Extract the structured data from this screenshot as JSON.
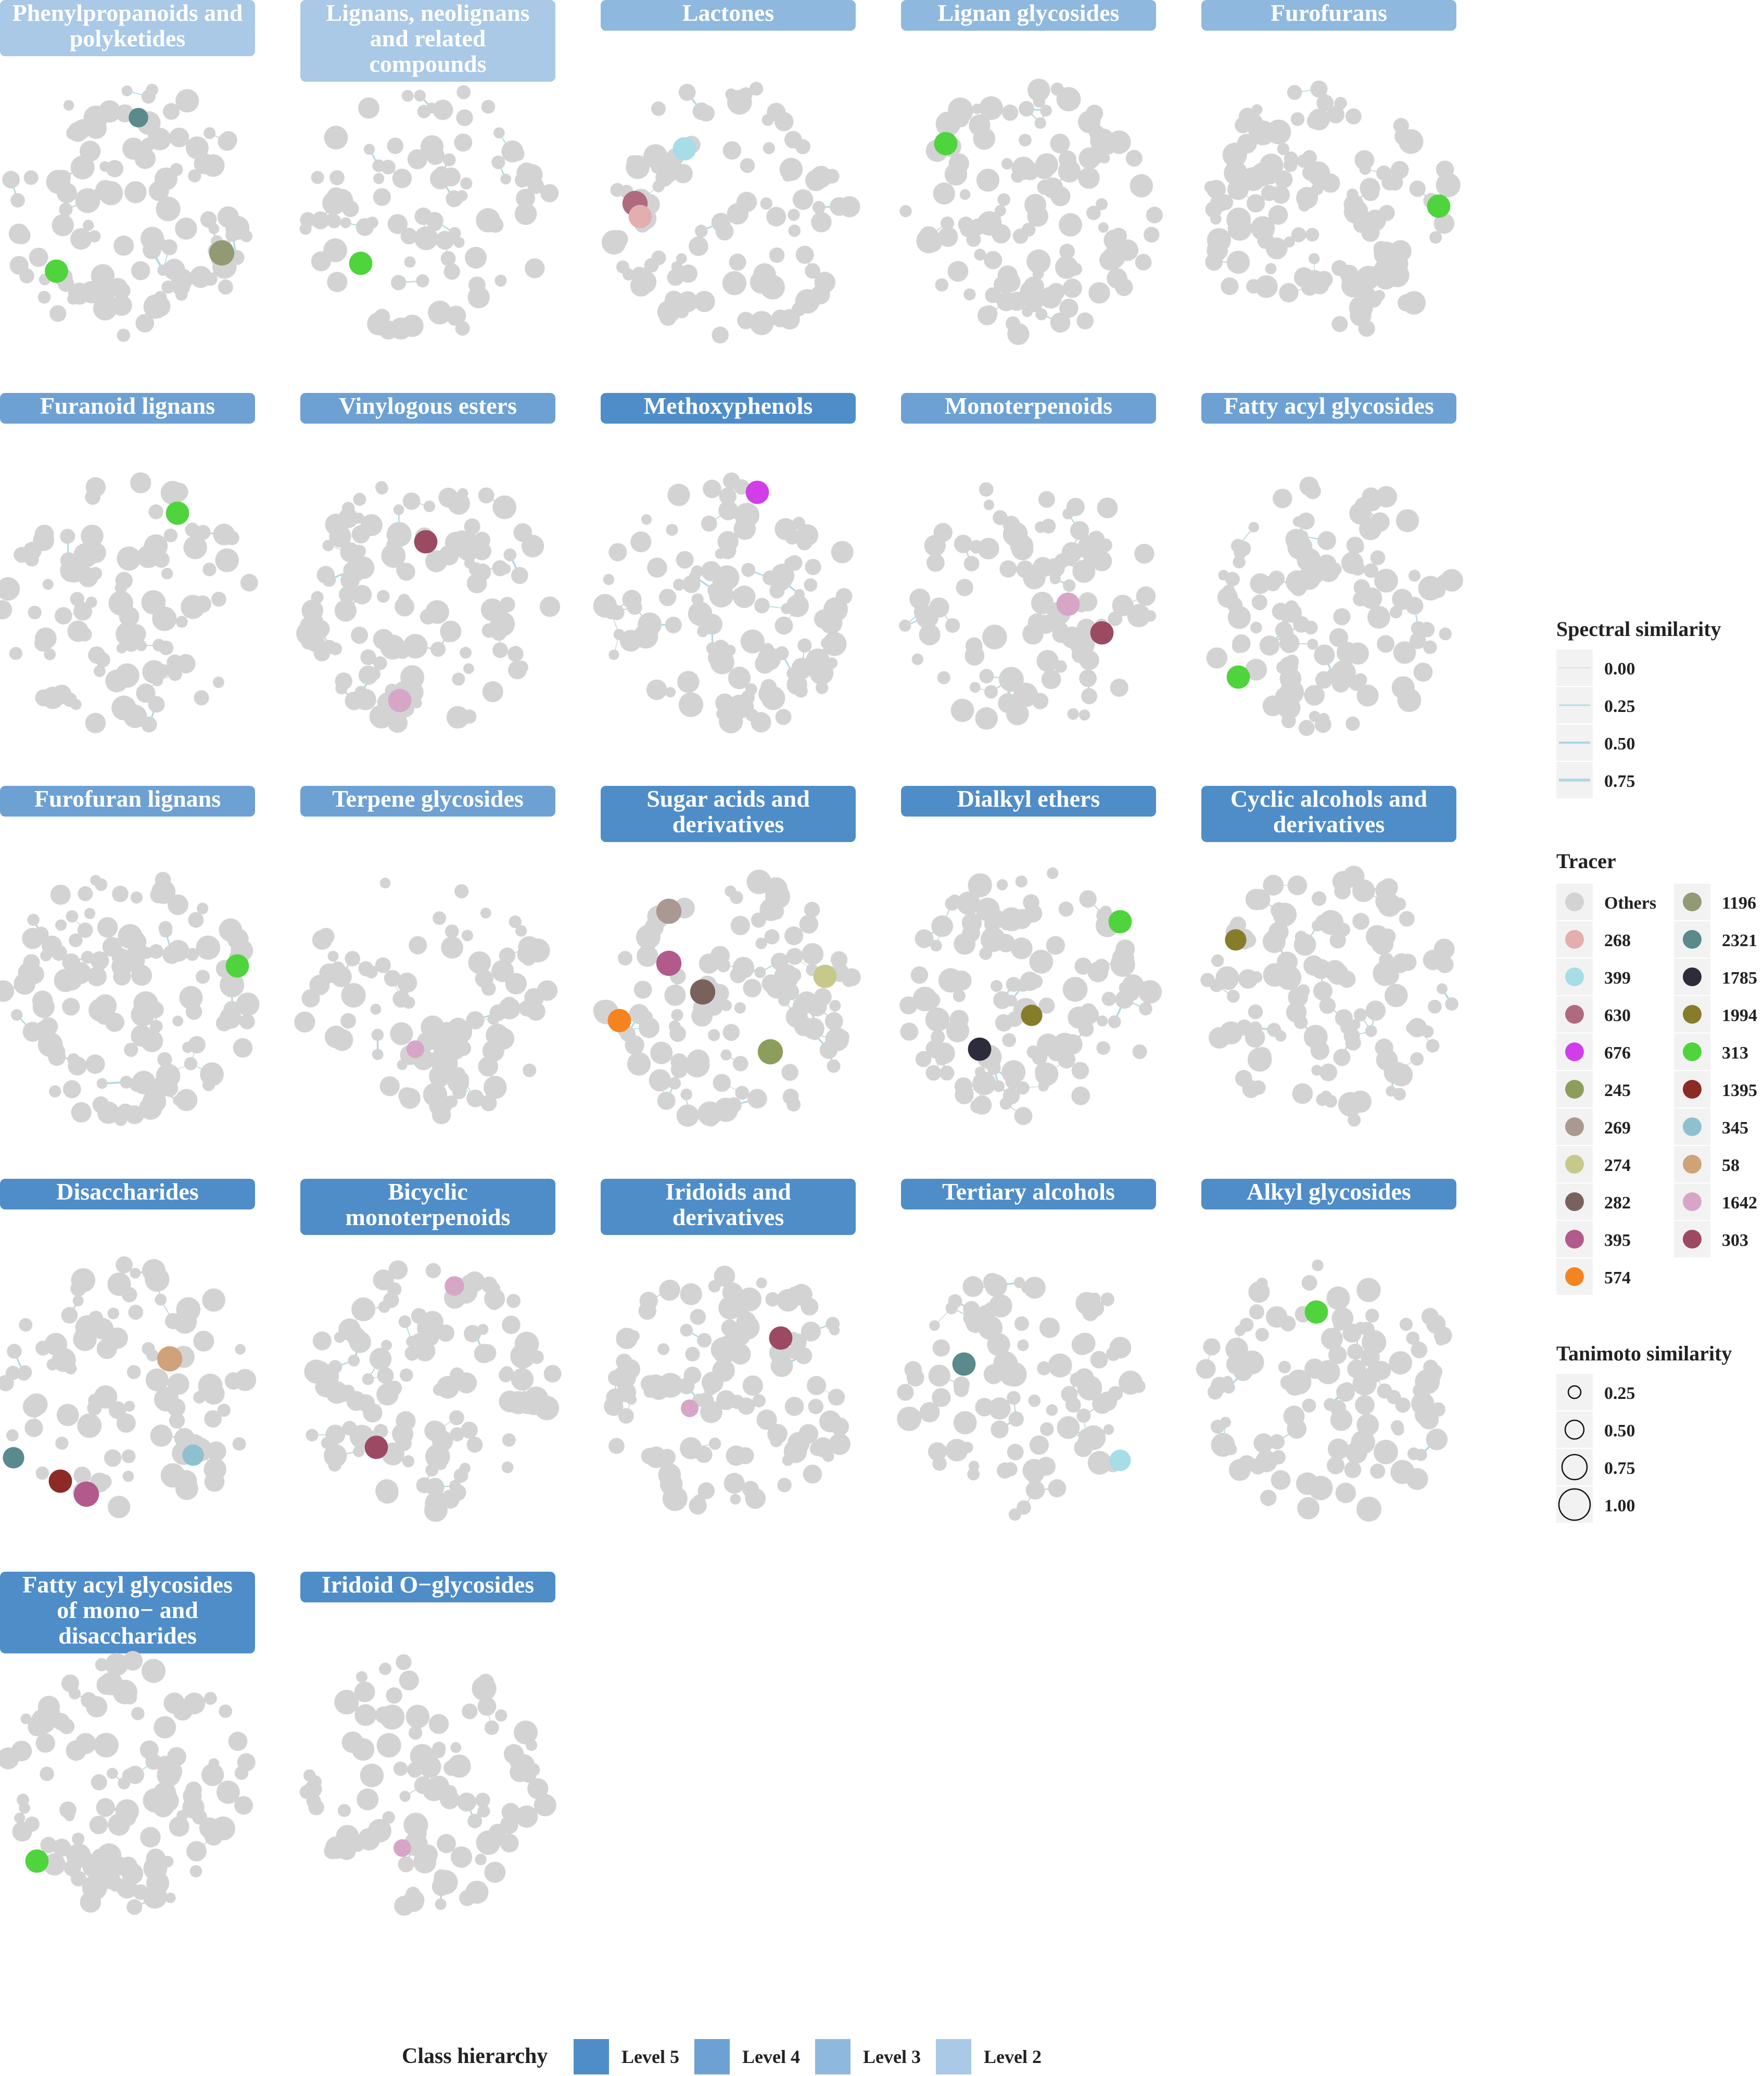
{
  "colors": {
    "node_default": "#d3d3d3",
    "edge": "#add8e6",
    "legend_key_bg": "#f2f2f2",
    "level5": "#4f8dc9",
    "level4": "#6da1d3",
    "level3": "#8fb8de",
    "level2": "#a9c9e6"
  },
  "panels": [
    {
      "lines": [
        "Phenylpropanoids and",
        "polyketides"
      ],
      "level": "level2",
      "tracers": [
        [
          "2321",
          0.08,
          -0.72,
          0.6
        ],
        [
          "1196",
          0.72,
          0.32,
          0.9
        ],
        [
          "313",
          -0.55,
          0.46,
          0.8
        ]
      ]
    },
    {
      "lines": [
        "Lignans, neolignans",
        "and related",
        "compounds"
      ],
      "level": "level2",
      "tracers": [
        [
          "313",
          -0.52,
          0.4,
          0.8
        ]
      ]
    },
    {
      "lines": [
        "Lactones"
      ],
      "level": "level3",
      "tracers": [
        [
          "399",
          -0.34,
          -0.48,
          0.8
        ],
        [
          "630",
          -0.72,
          -0.06,
          0.9
        ],
        [
          "268",
          -0.68,
          0.04,
          0.8
        ]
      ]
    },
    {
      "lines": [
        "Lignan glycosides"
      ],
      "level": "level3",
      "tracers": [
        [
          "313",
          -0.64,
          -0.52,
          0.8
        ]
      ]
    },
    {
      "lines": [
        "Furofurans"
      ],
      "level": "level3",
      "tracers": [
        [
          "313",
          0.84,
          -0.04,
          0.8
        ]
      ]
    },
    {
      "lines": [
        "Furanoid lignans"
      ],
      "level": "level4",
      "tracers": [
        [
          "313",
          0.38,
          -0.7,
          0.8
        ]
      ]
    },
    {
      "lines": [
        "Vinylogous esters"
      ],
      "level": "level4",
      "tracers": [
        [
          "303",
          -0.02,
          -0.48,
          0.8
        ],
        [
          "1642",
          -0.22,
          0.74,
          0.8
        ]
      ]
    },
    {
      "lines": [
        "Methoxyphenols"
      ],
      "level": "level5",
      "tracers": [
        [
          "676",
          0.22,
          -0.86,
          0.8
        ]
      ]
    },
    {
      "lines": [
        "Monoterpenoids"
      ],
      "level": "level4",
      "tracers": [
        [
          "1642",
          0.3,
          0.0,
          0.8
        ],
        [
          "303",
          0.56,
          0.22,
          0.8
        ]
      ]
    },
    {
      "lines": [
        "Fatty acyl glycosides"
      ],
      "level": "level4",
      "tracers": [
        [
          "313",
          -0.7,
          0.56,
          0.8
        ]
      ]
    },
    {
      "lines": [
        "Furofuran lignans"
      ],
      "level": "level4",
      "tracers": [
        [
          "313",
          0.84,
          -0.24,
          0.8
        ]
      ]
    },
    {
      "lines": [
        "Terpene glycosides"
      ],
      "level": "level4",
      "tracers": [
        [
          "1642",
          -0.1,
          0.4,
          0.5
        ]
      ]
    },
    {
      "lines": [
        "Sugar acids and",
        "derivatives"
      ],
      "level": "level5",
      "tracers": [
        [
          "269",
          -0.46,
          -0.66,
          0.9
        ],
        [
          "274",
          0.74,
          -0.16,
          0.8
        ],
        [
          "395",
          -0.46,
          -0.26,
          0.9
        ],
        [
          "282",
          -0.2,
          -0.04,
          0.9
        ],
        [
          "574",
          -0.84,
          0.18,
          0.8
        ],
        [
          "245",
          0.32,
          0.42,
          0.9
        ]
      ]
    },
    {
      "lines": [
        "Dialkyl ethers"
      ],
      "level": "level5",
      "tracers": [
        [
          "313",
          0.7,
          -0.58,
          0.8
        ],
        [
          "1994",
          0.02,
          0.14,
          0.7
        ],
        [
          "1785",
          -0.38,
          0.4,
          0.8
        ]
      ]
    },
    {
      "lines": [
        "Cyclic alcohols and",
        "derivatives"
      ],
      "level": "level5",
      "tracers": [
        [
          "1994",
          -0.72,
          -0.44,
          0.7
        ]
      ]
    },
    {
      "lines": [
        "Disaccharides"
      ],
      "level": "level5",
      "tracers": [
        [
          "58",
          0.32,
          -0.24,
          0.9
        ],
        [
          "2321",
          -0.88,
          0.52,
          0.7
        ],
        [
          "345",
          0.5,
          0.5,
          0.7
        ],
        [
          "1395",
          -0.52,
          0.7,
          0.8
        ],
        [
          "395",
          -0.32,
          0.8,
          0.9
        ]
      ]
    },
    {
      "lines": [
        "Bicyclic",
        "monoterpenoids"
      ],
      "level": "level5",
      "tracers": [
        [
          "1642",
          0.2,
          -0.8,
          0.6
        ],
        [
          "303",
          -0.4,
          0.44,
          0.8
        ]
      ]
    },
    {
      "lines": [
        "Iridoids and",
        "derivatives"
      ],
      "level": "level5",
      "tracers": [
        [
          "303",
          0.4,
          -0.4,
          0.8
        ],
        [
          "1642",
          -0.3,
          0.14,
          0.5
        ]
      ]
    },
    {
      "lines": [
        "Tertiary alcohols"
      ],
      "level": "level5",
      "tracers": [
        [
          "2321",
          -0.5,
          -0.2,
          0.8
        ],
        [
          "399",
          0.7,
          0.54,
          0.7
        ]
      ]
    },
    {
      "lines": [
        "Alkyl glycosides"
      ],
      "level": "level5",
      "tracers": [
        [
          "313",
          -0.1,
          -0.6,
          0.8
        ]
      ]
    },
    {
      "lines": [
        "Fatty acyl glycosides",
        "of mono− and",
        "disaccharides"
      ],
      "level": "level5",
      "tracers": [
        [
          "313",
          -0.7,
          0.6,
          0.8
        ]
      ]
    },
    {
      "lines": [
        "Iridoid O−glycosides"
      ],
      "level": "level5",
      "tracers": [
        [
          "1642",
          -0.2,
          0.5,
          0.5
        ]
      ]
    }
  ],
  "legend": {
    "spectral": {
      "title": "Spectral similarity",
      "values": [
        "0.00",
        "0.25",
        "0.50",
        "0.75"
      ]
    },
    "tracer": {
      "title": "Tracer",
      "col1": [
        {
          "label": "Others",
          "color": "#d3d3d3"
        },
        {
          "label": "268",
          "color": "#e3aeae"
        },
        {
          "label": "399",
          "color": "#a6dde6"
        },
        {
          "label": "630",
          "color": "#b06a7e"
        },
        {
          "label": "676",
          "color": "#d13ee8"
        },
        {
          "label": "245",
          "color": "#8c9e5c"
        },
        {
          "label": "269",
          "color": "#aa9892"
        },
        {
          "label": "274",
          "color": "#c6c98a"
        },
        {
          "label": "282",
          "color": "#7a625c"
        },
        {
          "label": "395",
          "color": "#b25a8c"
        },
        {
          "label": "574",
          "color": "#f5831f"
        }
      ],
      "col2": [
        {
          "label": "1196",
          "color": "#929a74"
        },
        {
          "label": "2321",
          "color": "#5a8a8c"
        },
        {
          "label": "1785",
          "color": "#2c2c3a"
        },
        {
          "label": "1994",
          "color": "#877c2a"
        },
        {
          "label": "313",
          "color": "#4fd43e"
        },
        {
          "label": "1395",
          "color": "#8c2a26"
        },
        {
          "label": "345",
          "color": "#8ec1cf"
        },
        {
          "label": "58",
          "color": "#cfa27a"
        },
        {
          "label": "1642",
          "color": "#d7a6c6"
        },
        {
          "label": "303",
          "color": "#9c4a62"
        }
      ]
    },
    "tanimoto": {
      "title": "Tanimoto similarity",
      "values": [
        "0.25",
        "0.50",
        "0.75",
        "1.00"
      ]
    },
    "hierarchy": {
      "title": "Class hierarchy",
      "items": [
        {
          "label": "Level 5",
          "key": "level5"
        },
        {
          "label": "Level 4",
          "key": "level4"
        },
        {
          "label": "Level 3",
          "key": "level3"
        },
        {
          "label": "Level 2",
          "key": "level2"
        }
      ]
    }
  }
}
